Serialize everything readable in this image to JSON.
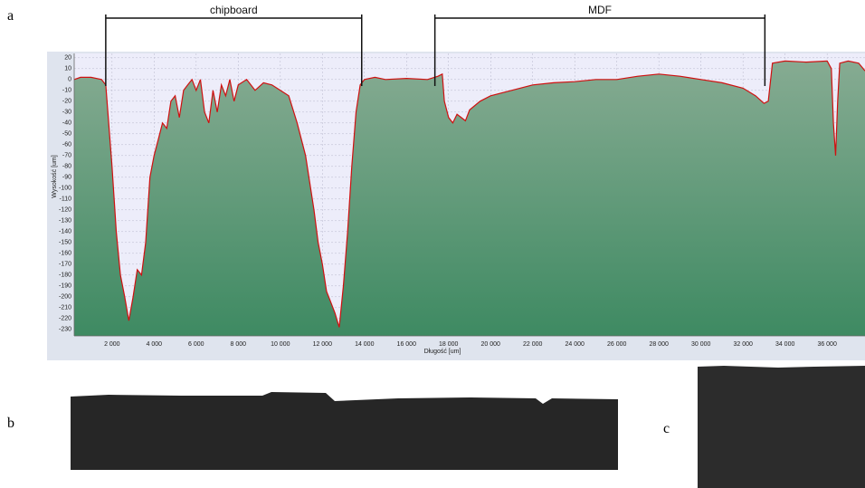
{
  "panel_labels": {
    "a": "a",
    "b": "b",
    "c": "c"
  },
  "chart_data": {
    "type": "area",
    "xlabel": "Długość [um]",
    "ylabel": "Wysokość [um]",
    "xlim": [
      200,
      37800
    ],
    "ylim": [
      -236,
      24
    ],
    "grid": true,
    "color": "#d01010",
    "fill_top": "#86ab92",
    "fill_bottom": "#3e8a62",
    "xticks": [
      {
        "value": 2000,
        "label": "2 000"
      },
      {
        "value": 4000,
        "label": "4 000"
      },
      {
        "value": 6000,
        "label": "6 000"
      },
      {
        "value": 8000,
        "label": "8 000"
      },
      {
        "value": 10000,
        "label": "10 000"
      },
      {
        "value": 12000,
        "label": "12 000"
      },
      {
        "value": 14000,
        "label": "14 000"
      },
      {
        "value": 16000,
        "label": "16 000"
      },
      {
        "value": 18000,
        "label": "18 000"
      },
      {
        "value": 20000,
        "label": "20 000"
      },
      {
        "value": 22000,
        "label": "22 000"
      },
      {
        "value": 24000,
        "label": "24 000"
      },
      {
        "value": 26000,
        "label": "26 000"
      },
      {
        "value": 28000,
        "label": "28 000"
      },
      {
        "value": 30000,
        "label": "30 000"
      },
      {
        "value": 32000,
        "label": "32 000"
      },
      {
        "value": 34000,
        "label": "34 000"
      },
      {
        "value": 36000,
        "label": "36 000"
      }
    ],
    "yticks": [
      20,
      10,
      0,
      -10,
      -20,
      -30,
      -40,
      -50,
      -60,
      -70,
      -80,
      -90,
      -100,
      -110,
      -120,
      -130,
      -140,
      -150,
      -160,
      -170,
      -180,
      -190,
      -200,
      -210,
      -220,
      -230
    ],
    "annotations": [
      {
        "text": "chipboard",
        "span": [
          1700,
          13870
        ]
      },
      {
        "text": "MDF",
        "span": [
          17350,
          33040
        ]
      }
    ],
    "x": [
      200,
      500,
      1000,
      1500,
      1700,
      2000,
      2200,
      2400,
      2600,
      2800,
      3000,
      3200,
      3400,
      3600,
      3800,
      4000,
      4200,
      4400,
      4600,
      4800,
      5000,
      5200,
      5400,
      5600,
      5800,
      6000,
      6200,
      6400,
      6600,
      6800,
      7000,
      7200,
      7400,
      7600,
      7800,
      8000,
      8400,
      8800,
      9200,
      9600,
      10000,
      10400,
      10800,
      11200,
      11600,
      11800,
      12000,
      12200,
      12400,
      12600,
      12800,
      13000,
      13200,
      13400,
      13600,
      13800,
      14000,
      14500,
      15000,
      16000,
      17000,
      17500,
      17700,
      17800,
      18000,
      18200,
      18400,
      18800,
      19000,
      19500,
      20000,
      21000,
      22000,
      23000,
      24000,
      25000,
      26000,
      27000,
      28000,
      29000,
      30000,
      31000,
      32000,
      32600,
      33000,
      33200,
      33400,
      34000,
      35000,
      36000,
      36200,
      36300,
      36400,
      36500,
      36600,
      37000,
      37500,
      37800
    ],
    "values": [
      0,
      2,
      2,
      0,
      -5,
      -80,
      -140,
      -180,
      -200,
      -222,
      -200,
      -175,
      -180,
      -150,
      -90,
      -70,
      -55,
      -40,
      -45,
      -20,
      -15,
      -35,
      -10,
      -5,
      0,
      -10,
      0,
      -30,
      -40,
      -10,
      -30,
      -5,
      -15,
      0,
      -20,
      -5,
      0,
      -10,
      -3,
      -5,
      -10,
      -15,
      -40,
      -70,
      -120,
      -150,
      -170,
      -195,
      -205,
      -215,
      -228,
      -190,
      -140,
      -80,
      -30,
      -5,
      0,
      2,
      0,
      1,
      0,
      3,
      5,
      -20,
      -35,
      -40,
      -32,
      -38,
      -28,
      -20,
      -15,
      -10,
      -5,
      -3,
      -2,
      0,
      0,
      3,
      5,
      3,
      0,
      -3,
      -8,
      -15,
      -22,
      -20,
      15,
      17,
      16,
      17,
      10,
      -40,
      -70,
      -20,
      15,
      17,
      15,
      8
    ]
  }
}
